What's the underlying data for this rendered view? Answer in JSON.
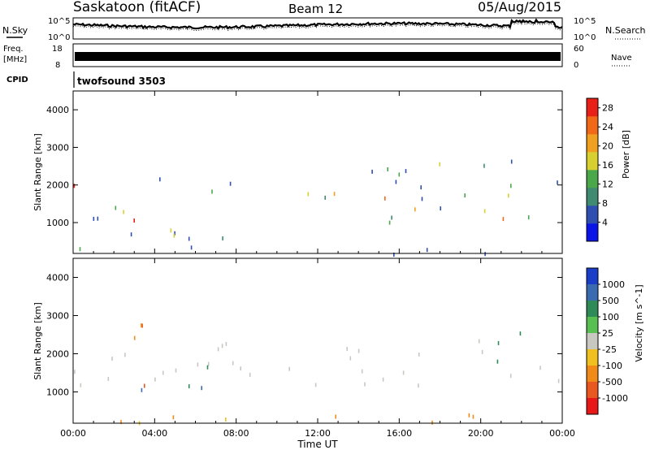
{
  "header": {
    "station": "Saskatoon (fitACF)",
    "beam": "Beam 12",
    "date": "05/Aug/2015"
  },
  "status_panels": {
    "nsky_label": "N.Sky",
    "nsearch_label": "N.Search",
    "noise_ticks": [
      "10^5",
      "10^0"
    ],
    "freq_label_1": "Freq.",
    "freq_label_2": "[MHz]",
    "freq_ticks": [
      "18",
      "8"
    ],
    "nave_label": "Nave",
    "nave_ticks": [
      "60",
      "0"
    ],
    "cpid_label": "CPID",
    "cpid_value": "twofsound 3503"
  },
  "time_axis": {
    "label": "Time UT",
    "ticks": [
      "00:00",
      "04:00",
      "08:00",
      "12:00",
      "16:00",
      "20:00",
      "00:00"
    ],
    "range_hours": [
      0,
      24
    ]
  },
  "chart_data": [
    {
      "type": "heatmap",
      "parameter": "Power",
      "ylabel": "Slant Range [km]",
      "yticks": [
        1000,
        2000,
        3000,
        4000
      ],
      "ylim": [
        180,
        4500
      ],
      "colorbar_label": "Power [dB]",
      "colorbar_ticks": [
        4,
        8,
        12,
        16,
        20,
        24,
        28
      ],
      "colorbar_range": [
        0,
        30
      ],
      "colors": [
        "#0a14e6",
        "#2f4fb0",
        "#3f8a70",
        "#4aa84a",
        "#d8d030",
        "#f0a020",
        "#f06818",
        "#e82018"
      ],
      "features": [
        {
          "t": [
            0.0,
            8.0
          ],
          "range_km": [
            600,
            2300
          ],
          "power_db": [
            4,
            28
          ],
          "peak_db": 28
        },
        {
          "t": [
            11.5,
            24.0
          ],
          "range_km": [
            1000,
            2800
          ],
          "power_db": [
            4,
            26
          ],
          "peak_db": 26
        },
        {
          "t": [
            2.0,
            3.5
          ],
          "range_km": [
            600,
            750
          ],
          "power_db": [
            8,
            12
          ]
        },
        {
          "t": [
            0.0,
            24.0
          ],
          "range_km": [
            200,
            400
          ],
          "power_db": [
            4,
            14
          ]
        }
      ]
    },
    {
      "type": "heatmap",
      "parameter": "Velocity",
      "ylabel": "Slant Range [km]",
      "yticks": [
        1000,
        2000,
        3000,
        4000
      ],
      "ylim": [
        180,
        4500
      ],
      "colorbar_label": "Velocity [m s^-1]",
      "colorbar_ticks": [
        1000,
        500,
        100,
        25,
        -25,
        -100,
        -500,
        -1000
      ],
      "colors": [
        "#1a3ec8",
        "#3a6ab0",
        "#2e8b57",
        "#58c050",
        "#c8c8c0",
        "#f0c020",
        "#f08a18",
        "#e85820",
        "#e81818"
      ],
      "features": [
        {
          "t": [
            0.0,
            24.0
          ],
          "range_km": [
            1200,
            2400
          ],
          "velocity_ms": [
            -25,
            25
          ],
          "class": "ground scatter"
        },
        {
          "t": [
            3.0,
            8.0
          ],
          "range_km": [
            1000,
            1800
          ],
          "velocity_ms": [
            25,
            1000
          ]
        },
        {
          "t": [
            2.0,
            3.5
          ],
          "range_km": [
            1200,
            3400
          ],
          "velocity_ms": [
            -1000,
            -100
          ]
        },
        {
          "t": [
            20.0,
            23.0
          ],
          "range_km": [
            1800,
            2600
          ],
          "velocity_ms": [
            100,
            500
          ]
        },
        {
          "t": [
            0.0,
            24.0
          ],
          "range_km": [
            200,
            500
          ],
          "velocity_ms": [
            -500,
            -25
          ]
        }
      ]
    }
  ]
}
